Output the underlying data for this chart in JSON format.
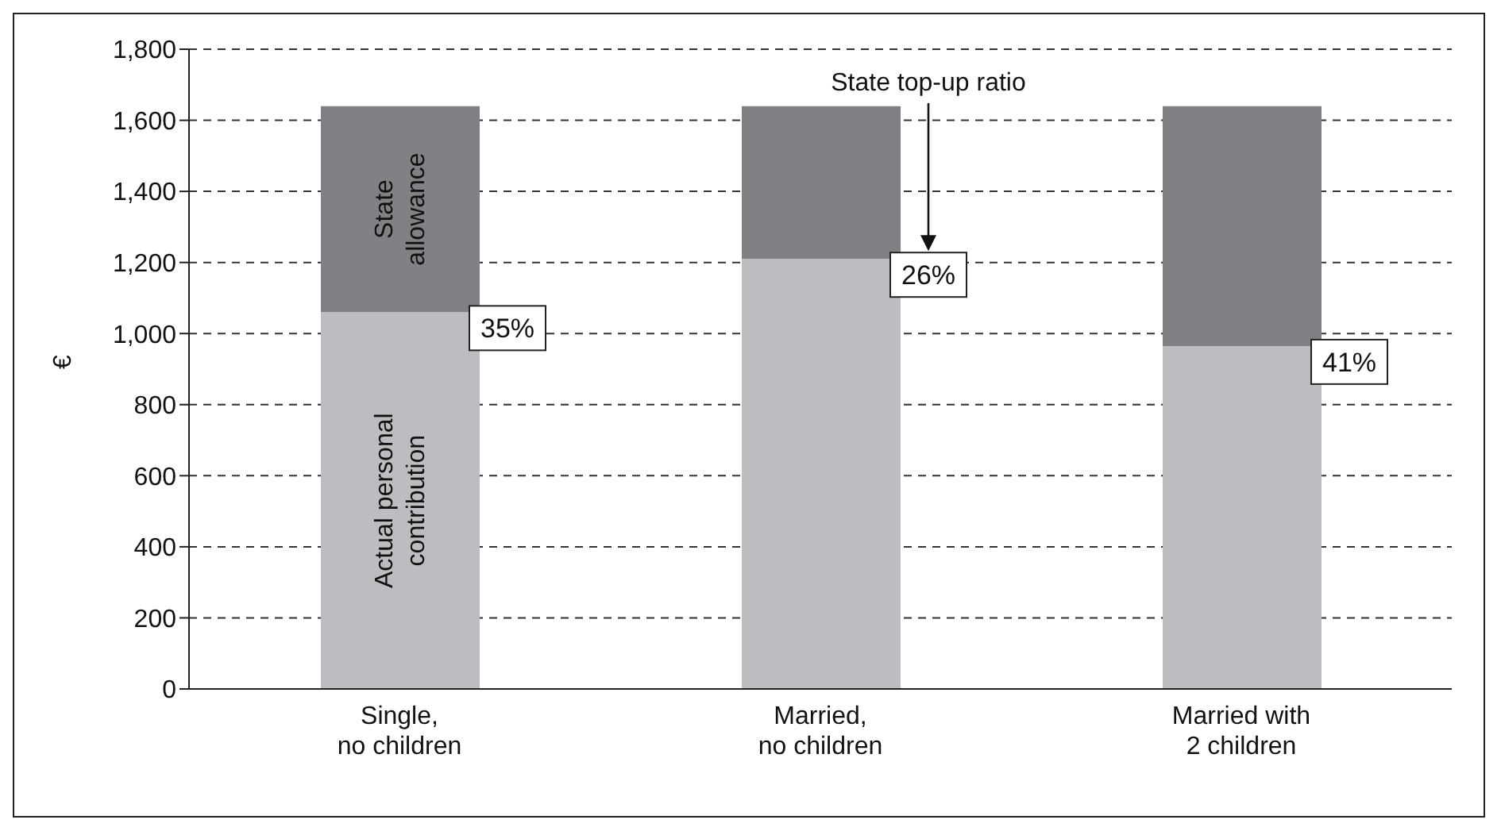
{
  "chart_data": {
    "type": "bar",
    "stacked": true,
    "ylabel": "€",
    "categories": [
      "Single,\nno children",
      "Married,\nno children",
      "Married with\n2 children"
    ],
    "series": [
      {
        "name": "Actual personal contribution",
        "color": "#bcbdc0",
        "values": [
          1060,
          1210,
          965
        ]
      },
      {
        "name": "State allowance",
        "color": "#808184",
        "values": [
          580,
          430,
          675
        ]
      }
    ],
    "ylim": [
      0,
      1800
    ],
    "yticks": [
      0,
      {
        "value": 200,
        "label": "200"
      },
      {
        "value": 400,
        "label": "400"
      },
      {
        "value": 600,
        "label": "600"
      },
      {
        "value": 800,
        "label": "800"
      },
      {
        "value": 1000,
        "label": "1,000"
      },
      {
        "value": 1200,
        "label": "1,200"
      },
      {
        "value": 1400,
        "label": "1,400"
      },
      {
        "value": 1600,
        "label": "1,600"
      },
      {
        "value": 1800,
        "label": "1,800"
      }
    ],
    "grid": "y",
    "line_style": "dashed",
    "annotations": [
      {
        "text": "35%",
        "x": "Single,\nno children",
        "y": 1060
      },
      {
        "text": "26%",
        "x": "Married,\nno children",
        "y": 1210
      },
      {
        "text": "41%",
        "x": "Married with\n2 children",
        "y": 965
      },
      "State top-up ratio"
    ]
  }
}
